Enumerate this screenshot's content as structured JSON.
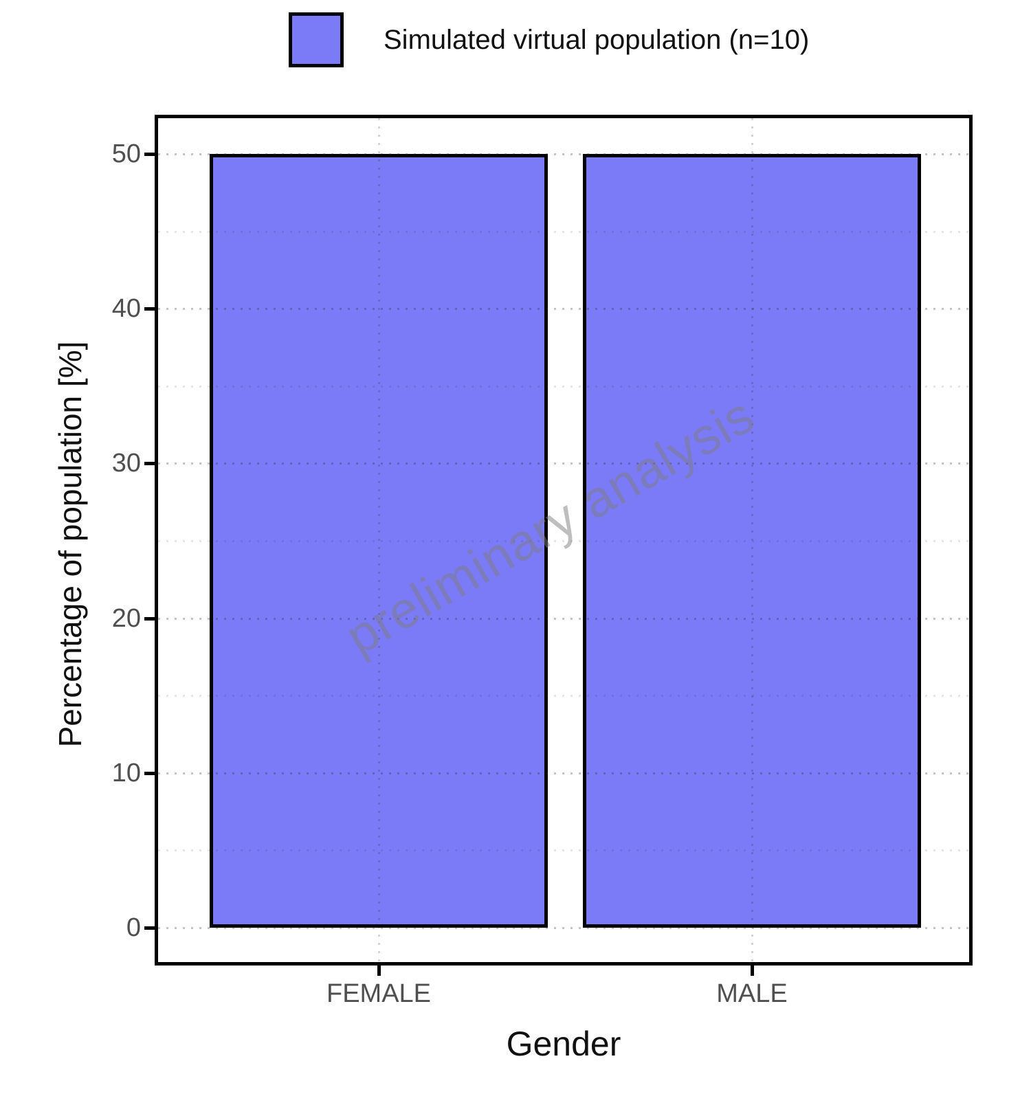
{
  "legend": {
    "label": "Simulated virtual population (n=10)",
    "swatch_color": "#7b7af7",
    "swatch_border_color": "#000000"
  },
  "chart_data": {
    "type": "bar",
    "title": "",
    "categories": [
      "FEMALE",
      "MALE"
    ],
    "values": [
      50,
      50
    ],
    "series": [
      {
        "name": "Simulated virtual population (n=10)",
        "values": [
          50,
          50
        ]
      }
    ],
    "xlabel": "Gender",
    "ylabel": "Percentage of population [%]",
    "ylim": [
      0,
      50
    ],
    "yticks_major": [
      0,
      10,
      20,
      30,
      40,
      50
    ],
    "yticks_minor": [
      5,
      15,
      25,
      35,
      45
    ],
    "grid": "dotted horizontal major+minor, dotted vertical at category centers, drawn over bars",
    "legend_position": "top-center",
    "bar_fill": "#7b7af7",
    "bar_border": "#000000",
    "axis_text_color": "#4f4f4f",
    "axis_title_color": "#111111",
    "watermark_text": "preliminary analysis"
  }
}
